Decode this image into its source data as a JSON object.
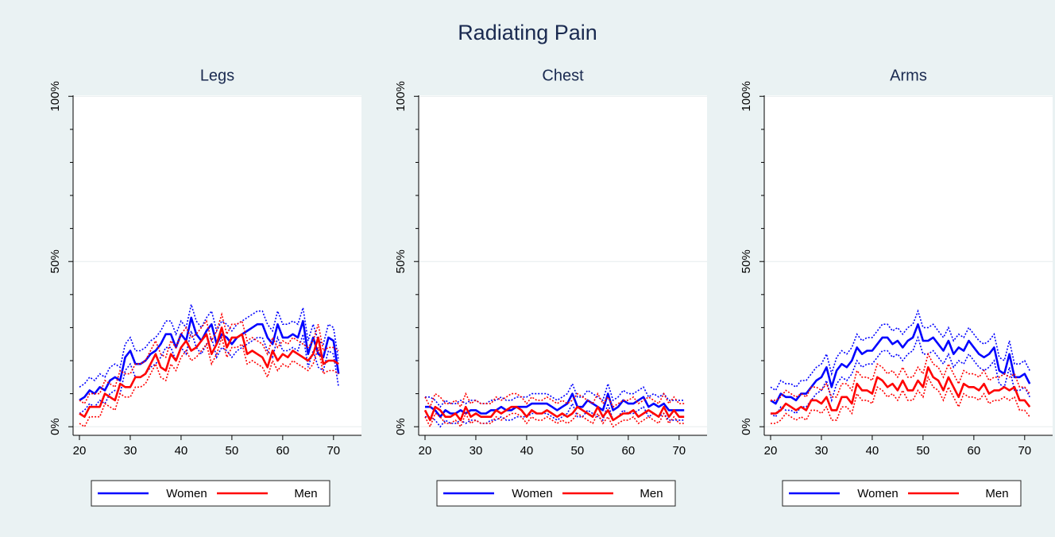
{
  "title": "Radiating Pain",
  "chart_data": [
    {
      "type": "line",
      "title": "Legs",
      "x": [
        20,
        21,
        22,
        23,
        24,
        25,
        26,
        27,
        28,
        29,
        30,
        31,
        32,
        33,
        34,
        35,
        36,
        37,
        38,
        39,
        40,
        41,
        42,
        43,
        44,
        45,
        46,
        47,
        48,
        49,
        50,
        51,
        52,
        53,
        54,
        55,
        56,
        57,
        58,
        59,
        60,
        61,
        62,
        63,
        64,
        65,
        66,
        67,
        68,
        69,
        70,
        71
      ],
      "series": [
        {
          "name": "Women",
          "color": "#0000ff",
          "values": [
            8,
            9,
            11,
            10,
            12,
            11,
            14,
            15,
            14,
            21,
            23,
            19,
            19,
            20,
            22,
            23,
            25,
            28,
            28,
            24,
            28,
            26,
            33,
            28,
            26,
            29,
            31,
            25,
            28,
            27,
            25,
            27,
            28,
            29,
            30,
            31,
            31,
            27,
            25,
            31,
            27,
            27,
            28,
            27,
            32,
            22,
            27,
            22,
            21,
            27,
            26,
            16
          ],
          "upper": [
            12,
            13,
            15,
            14,
            16,
            15,
            18,
            19,
            18,
            25,
            27,
            23,
            23,
            24,
            26,
            27,
            29,
            32,
            32,
            28,
            32,
            30,
            37,
            32,
            30,
            33,
            35,
            29,
            32,
            31,
            29,
            31,
            32,
            33,
            34,
            35,
            35,
            31,
            29,
            35,
            31,
            31,
            32,
            31,
            36,
            26,
            31,
            26,
            25,
            31,
            30,
            20
          ],
          "lower": [
            4,
            5,
            7,
            6,
            8,
            7,
            10,
            11,
            10,
            17,
            19,
            15,
            15,
            16,
            18,
            19,
            21,
            24,
            24,
            20,
            24,
            22,
            29,
            24,
            22,
            25,
            27,
            21,
            24,
            23,
            21,
            23,
            24,
            25,
            26,
            27,
            27,
            23,
            21,
            27,
            23,
            23,
            24,
            23,
            28,
            18,
            23,
            18,
            17,
            23,
            22,
            12
          ]
        },
        {
          "name": "Men",
          "color": "#ff0000",
          "values": [
            4,
            3,
            6,
            6,
            6,
            10,
            9,
            8,
            13,
            12,
            12,
            15,
            15,
            16,
            19,
            22,
            18,
            17,
            22,
            20,
            24,
            26,
            23,
            24,
            26,
            28,
            22,
            25,
            30,
            24,
            27,
            27,
            28,
            22,
            23,
            22,
            21,
            18,
            23,
            20,
            22,
            21,
            23,
            22,
            21,
            20,
            22,
            27,
            19,
            20,
            20,
            19
          ],
          "upper": [
            8,
            7,
            10,
            10,
            10,
            14,
            13,
            12,
            17,
            16,
            16,
            19,
            19,
            20,
            23,
            26,
            22,
            21,
            26,
            24,
            28,
            30,
            27,
            28,
            30,
            32,
            26,
            29,
            34,
            28,
            31,
            31,
            32,
            26,
            27,
            26,
            25,
            22,
            27,
            24,
            26,
            25,
            27,
            26,
            25,
            24,
            26,
            31,
            23,
            24,
            24,
            23
          ],
          "lower": [
            1,
            0,
            3,
            3,
            3,
            7,
            6,
            5,
            10,
            9,
            9,
            12,
            12,
            13,
            16,
            19,
            15,
            14,
            19,
            17,
            21,
            23,
            20,
            21,
            23,
            25,
            19,
            22,
            27,
            21,
            24,
            24,
            25,
            19,
            20,
            19,
            18,
            15,
            20,
            17,
            19,
            18,
            20,
            19,
            18,
            17,
            19,
            24,
            16,
            17,
            17,
            16
          ]
        }
      ],
      "xlim": [
        18.75,
        75.5
      ],
      "ylim": [
        -2.6,
        100.3
      ],
      "xticks": [
        20,
        30,
        40,
        50,
        60,
        70
      ],
      "yticks": [
        {
          "value": 0,
          "label": "0%"
        },
        {
          "value": 50,
          "label": "50%"
        },
        {
          "value": 100,
          "label": "100%"
        }
      ],
      "yminorticks": [
        10,
        20,
        30,
        40,
        60,
        70,
        80,
        90
      ],
      "grid": true,
      "legend": "bottom"
    },
    {
      "type": "line",
      "title": "Chest",
      "x": [
        20,
        21,
        22,
        23,
        24,
        25,
        26,
        27,
        28,
        29,
        30,
        31,
        32,
        33,
        34,
        35,
        36,
        37,
        38,
        39,
        40,
        41,
        42,
        43,
        44,
        45,
        46,
        47,
        48,
        49,
        50,
        51,
        52,
        53,
        54,
        55,
        56,
        57,
        58,
        59,
        60,
        61,
        62,
        63,
        64,
        65,
        66,
        67,
        68,
        69,
        70,
        71
      ],
      "series": [
        {
          "name": "Women",
          "color": "#0000ff",
          "values": [
            6,
            6,
            5,
            3,
            5,
            4,
            4,
            5,
            4,
            5,
            5,
            4,
            4,
            5,
            5,
            6,
            5,
            5,
            6,
            6,
            6,
            7,
            7,
            7,
            7,
            6,
            5,
            6,
            7,
            10,
            6,
            6,
            8,
            7,
            6,
            5,
            10,
            5,
            6,
            8,
            7,
            7,
            8,
            9,
            6,
            7,
            6,
            7,
            5,
            5,
            5,
            5
          ],
          "upper": [
            9,
            9,
            8,
            6,
            8,
            7,
            7,
            8,
            7,
            8,
            8,
            7,
            7,
            8,
            8,
            9,
            8,
            8,
            9,
            9,
            9,
            10,
            10,
            10,
            10,
            9,
            8,
            9,
            10,
            13,
            9,
            9,
            11,
            10,
            9,
            8,
            13,
            8,
            9,
            11,
            10,
            10,
            11,
            12,
            9,
            10,
            9,
            10,
            8,
            8,
            8,
            8
          ],
          "lower": [
            3,
            3,
            2,
            0,
            2,
            1,
            1,
            2,
            1,
            2,
            2,
            1,
            1,
            2,
            2,
            3,
            2,
            2,
            3,
            3,
            3,
            4,
            4,
            4,
            4,
            3,
            2,
            3,
            4,
            7,
            3,
            3,
            5,
            4,
            3,
            2,
            7,
            2,
            3,
            5,
            4,
            4,
            5,
            6,
            3,
            4,
            3,
            4,
            2,
            2,
            2,
            2
          ]
        },
        {
          "name": "Men",
          "color": "#ff0000",
          "values": [
            5,
            2,
            6,
            5,
            3,
            3,
            4,
            2,
            6,
            3,
            4,
            3,
            3,
            3,
            5,
            4,
            5,
            6,
            6,
            5,
            3,
            5,
            4,
            4,
            5,
            4,
            3,
            4,
            3,
            4,
            6,
            5,
            4,
            3,
            6,
            3,
            5,
            2,
            3,
            4,
            4,
            5,
            3,
            4,
            5,
            4,
            3,
            6,
            3,
            5,
            3,
            3
          ],
          "upper": [
            9,
            6,
            10,
            9,
            7,
            7,
            8,
            6,
            10,
            7,
            8,
            7,
            7,
            7,
            9,
            8,
            9,
            10,
            10,
            9,
            7,
            9,
            8,
            8,
            9,
            8,
            7,
            8,
            7,
            8,
            10,
            9,
            8,
            7,
            10,
            7,
            9,
            6,
            7,
            8,
            8,
            9,
            7,
            8,
            9,
            8,
            7,
            10,
            7,
            9,
            7,
            7
          ],
          "lower": [
            3,
            0,
            4,
            3,
            1,
            1,
            2,
            0,
            4,
            1,
            2,
            1,
            1,
            1,
            3,
            2,
            3,
            4,
            4,
            3,
            1,
            3,
            2,
            2,
            3,
            2,
            1,
            2,
            1,
            2,
            4,
            3,
            2,
            1,
            4,
            1,
            3,
            0,
            1,
            2,
            2,
            3,
            1,
            2,
            3,
            2,
            1,
            4,
            1,
            3,
            1,
            1
          ]
        }
      ],
      "xlim": [
        18.75,
        75.5
      ],
      "ylim": [
        -2.6,
        100.3
      ],
      "xticks": [
        20,
        30,
        40,
        50,
        60,
        70
      ],
      "yticks": [
        {
          "value": 0,
          "label": "0%"
        },
        {
          "value": 50,
          "label": "50%"
        },
        {
          "value": 100,
          "label": "100%"
        }
      ],
      "yminorticks": [
        10,
        20,
        30,
        40,
        60,
        70,
        80,
        90
      ],
      "grid": true,
      "legend": "bottom"
    },
    {
      "type": "line",
      "title": "Arms",
      "x": [
        20,
        21,
        22,
        23,
        24,
        25,
        26,
        27,
        28,
        29,
        30,
        31,
        32,
        33,
        34,
        35,
        36,
        37,
        38,
        39,
        40,
        41,
        42,
        43,
        44,
        45,
        46,
        47,
        48,
        49,
        50,
        51,
        52,
        53,
        54,
        55,
        56,
        57,
        58,
        59,
        60,
        61,
        62,
        63,
        64,
        65,
        66,
        67,
        68,
        69,
        70,
        71
      ],
      "series": [
        {
          "name": "Women",
          "color": "#0000ff",
          "values": [
            8,
            7,
            10,
            9,
            9,
            8,
            10,
            10,
            12,
            14,
            15,
            18,
            12,
            17,
            19,
            18,
            20,
            24,
            22,
            23,
            23,
            25,
            27,
            27,
            25,
            26,
            24,
            26,
            27,
            31,
            26,
            26,
            27,
            25,
            23,
            26,
            22,
            24,
            23,
            26,
            24,
            22,
            21,
            22,
            24,
            17,
            16,
            22,
            15,
            15,
            16,
            13
          ],
          "upper": [
            12,
            11,
            14,
            13,
            13,
            12,
            14,
            14,
            16,
            18,
            19,
            22,
            16,
            21,
            23,
            22,
            24,
            28,
            26,
            27,
            27,
            29,
            31,
            31,
            29,
            30,
            28,
            30,
            31,
            35,
            30,
            30,
            31,
            29,
            27,
            30,
            26,
            28,
            27,
            30,
            28,
            26,
            25,
            26,
            28,
            21,
            20,
            26,
            19,
            19,
            20,
            17
          ],
          "lower": [
            4,
            3,
            6,
            5,
            5,
            4,
            6,
            6,
            8,
            10,
            11,
            14,
            8,
            13,
            15,
            14,
            16,
            20,
            18,
            19,
            19,
            21,
            23,
            23,
            21,
            22,
            20,
            22,
            23,
            27,
            22,
            22,
            23,
            21,
            19,
            22,
            18,
            20,
            19,
            22,
            20,
            18,
            17,
            18,
            20,
            13,
            12,
            18,
            11,
            11,
            12,
            9
          ]
        },
        {
          "name": "Men",
          "color": "#ff0000",
          "values": [
            4,
            4,
            5,
            7,
            6,
            5,
            6,
            5,
            8,
            8,
            7,
            9,
            5,
            5,
            9,
            9,
            7,
            13,
            11,
            11,
            10,
            15,
            14,
            12,
            13,
            11,
            14,
            11,
            11,
            14,
            12,
            18,
            15,
            14,
            11,
            15,
            12,
            9,
            13,
            12,
            12,
            11,
            13,
            10,
            11,
            11,
            12,
            11,
            12,
            8,
            8,
            6
          ],
          "upper": [
            8,
            8,
            9,
            11,
            10,
            9,
            10,
            9,
            12,
            12,
            11,
            13,
            9,
            9,
            13,
            13,
            11,
            17,
            15,
            15,
            14,
            19,
            18,
            16,
            17,
            15,
            18,
            15,
            15,
            18,
            16,
            22,
            19,
            18,
            15,
            19,
            16,
            13,
            17,
            16,
            16,
            15,
            17,
            14,
            15,
            15,
            16,
            15,
            16,
            12,
            12,
            10
          ],
          "lower": [
            1,
            1,
            2,
            4,
            3,
            2,
            3,
            2,
            5,
            5,
            4,
            6,
            2,
            2,
            6,
            6,
            4,
            10,
            8,
            8,
            7,
            12,
            11,
            9,
            10,
            8,
            11,
            8,
            8,
            11,
            9,
            15,
            12,
            11,
            8,
            12,
            9,
            6,
            10,
            9,
            9,
            8,
            10,
            7,
            8,
            8,
            9,
            8,
            9,
            5,
            5,
            3
          ]
        }
      ],
      "xlim": [
        18.75,
        75.5
      ],
      "ylim": [
        -2.6,
        100.3
      ],
      "xticks": [
        20,
        30,
        40,
        50,
        60,
        70
      ],
      "yticks": [
        {
          "value": 0,
          "label": "0%"
        },
        {
          "value": 50,
          "label": "50%"
        },
        {
          "value": 100,
          "label": "100%"
        }
      ],
      "yminorticks": [
        10,
        20,
        30,
        40,
        60,
        70,
        80,
        90
      ],
      "grid": true,
      "legend": "bottom"
    }
  ]
}
